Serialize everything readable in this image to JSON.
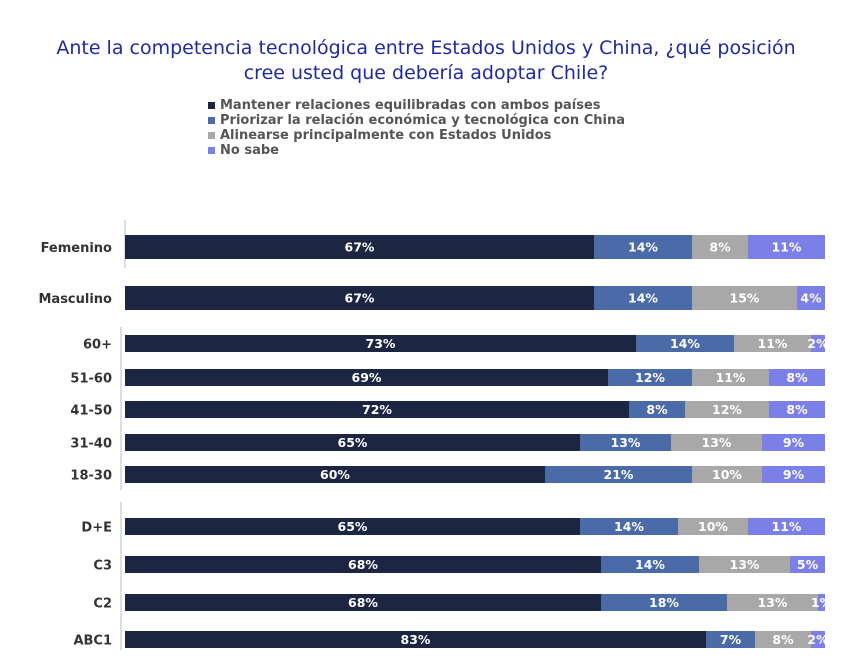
{
  "chart_data": {
    "type": "bar",
    "orientation": "horizontal",
    "stacked": true,
    "title_line1": "Ante la competencia tecnológica entre Estados Unidos y China, ¿qué posición",
    "title_line2": "cree usted que debería adoptar Chile?",
    "legend_position": "top",
    "colors": [
      "#1c2541",
      "#4a6aa8",
      "#a8a8a8",
      "#7b7fe8"
    ],
    "series": [
      {
        "name": "Mantener relaciones equilibradas con ambos países"
      },
      {
        "name": "Priorizar la relación económica y tecnológica con China"
      },
      {
        "name": "Alinearse principalmente con Estados Unidos"
      },
      {
        "name": "No sabe"
      }
    ],
    "categories": [
      "Femenino",
      "Masculino",
      "60+",
      "51-60",
      "41-50",
      "31-40",
      "18-30",
      "D+E",
      "C3",
      "C2",
      "ABC1"
    ],
    "values": [
      [
        67,
        14,
        8,
        11
      ],
      [
        67,
        14,
        15,
        4
      ],
      [
        73,
        14,
        11,
        2
      ],
      [
        69,
        12,
        11,
        8
      ],
      [
        72,
        8,
        12,
        8
      ],
      [
        65,
        13,
        13,
        9
      ],
      [
        60,
        21,
        10,
        9
      ],
      [
        65,
        14,
        10,
        11
      ],
      [
        68,
        14,
        13,
        5
      ],
      [
        68,
        18,
        13,
        1
      ],
      [
        83,
        7,
        8,
        2
      ]
    ],
    "labels": [
      [
        "67%",
        "14%",
        "8%",
        "11%"
      ],
      [
        "67%",
        "14%",
        "15%",
        "4%"
      ],
      [
        "73%",
        "14%",
        "11%",
        "2%"
      ],
      [
        "69%",
        "12%",
        "11%",
        "8%"
      ],
      [
        "72%",
        "8%",
        "12%",
        "8%"
      ],
      [
        "65%",
        "13%",
        "13%",
        "9%"
      ],
      [
        "60%",
        "21%",
        "10%",
        "9%"
      ],
      [
        "65%",
        "14%",
        "10%",
        "11%"
      ],
      [
        "68%",
        "14%",
        "13%",
        "5%"
      ],
      [
        "68%",
        "18%",
        "13%",
        "1%"
      ],
      [
        "83%",
        "7%",
        "8%",
        "2%"
      ]
    ]
  }
}
